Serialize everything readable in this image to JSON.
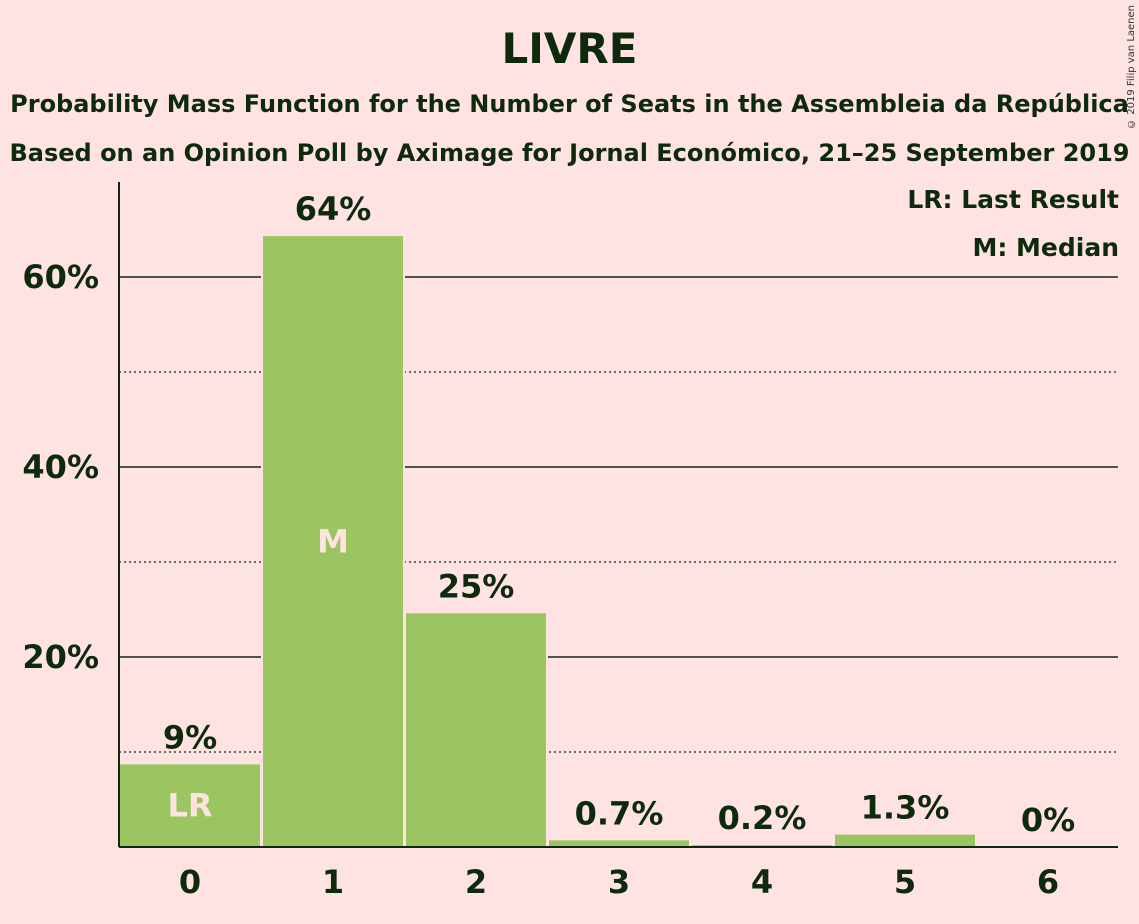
{
  "chart_data": {
    "type": "bar",
    "title": "LIVRE",
    "subtitle": "Probability Mass Function for the Number of Seats in the Assembleia da República",
    "subtitle2": "Based on an Opinion Poll by Aximage for Jornal Económico, 21–25 September 2019",
    "copyright": "© 2019 Filip van Laenen",
    "categories": [
      "0",
      "1",
      "2",
      "3",
      "4",
      "5",
      "6"
    ],
    "values": [
      8.7,
      64.3,
      24.6,
      0.7,
      0.2,
      1.3,
      0
    ],
    "data_labels": [
      "9%",
      "64%",
      "25%",
      "0.7%",
      "0.2%",
      "1.3%",
      "0%"
    ],
    "bar_markers": [
      "LR",
      "M",
      "",
      "",
      "",
      "",
      ""
    ],
    "ylim": [
      0,
      70
    ],
    "y_ticks": [
      20,
      40,
      60
    ],
    "y_tick_labels": [
      "20%",
      "40%",
      "60%"
    ],
    "minor_gridlines": [
      10,
      30,
      50
    ],
    "legend": [
      "LR: Last Result",
      "M: Median"
    ],
    "legend_position": "top-right",
    "colors": {
      "bar": "#9bc560",
      "background": "#ffe2e2",
      "text": "#0d2a0d"
    }
  }
}
